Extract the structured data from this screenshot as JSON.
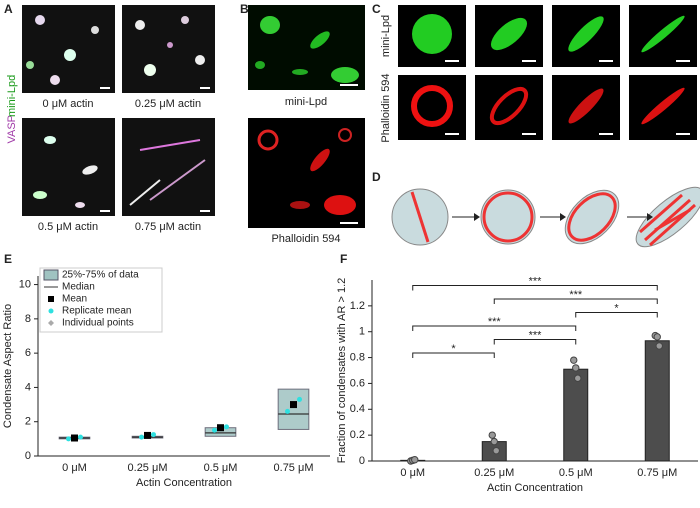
{
  "panels": {
    "A": {
      "label": "A",
      "stain1": "VASP",
      "stain2": "mini-Lpd",
      "captions": [
        "0 μM actin",
        "0.25 μM actin",
        "0.5 μM actin",
        "0.75 μM actin"
      ]
    },
    "B": {
      "label": "B",
      "captions": [
        "mini-Lpd",
        "Phalloidin 594"
      ]
    },
    "C": {
      "label": "C",
      "rows": [
        "mini-Lpd",
        "Phalloidin 594"
      ]
    },
    "D": {
      "label": "D"
    },
    "E": {
      "label": "E"
    },
    "F": {
      "label": "F"
    }
  },
  "chart_data": [
    {
      "type": "box",
      "ylabel": "Condensate Aspect Ratio",
      "xlabel": "Actin Concentration",
      "categories": [
        "0 μM",
        "0.25 μM",
        "0.5 μM",
        "0.75 μM"
      ],
      "q1": [
        1.0,
        1.05,
        1.15,
        1.55
      ],
      "median": [
        1.05,
        1.1,
        1.35,
        2.45
      ],
      "q3": [
        1.1,
        1.15,
        1.65,
        3.9
      ],
      "mean": [
        1.05,
        1.2,
        1.65,
        3.0
      ],
      "replicate_means": [
        [
          1.0,
          1.05,
          1.1
        ],
        [
          1.1,
          1.2,
          1.25
        ],
        [
          1.5,
          1.6,
          1.7
        ],
        [
          2.6,
          3.0,
          3.3
        ]
      ],
      "ylim": [
        0,
        10.5
      ],
      "yticks": [
        0,
        2,
        4,
        6,
        8,
        10
      ],
      "box_color": "#9fc3c1",
      "legend": [
        "25%-75% of data",
        "Median",
        "Mean",
        "Replicate mean",
        "Individual points"
      ]
    },
    {
      "type": "bar",
      "ylabel": "Fraction of condensates with AR > 1.2",
      "xlabel": "Actin Concentration",
      "categories": [
        "0 μM",
        "0.25 μM",
        "0.5 μM",
        "0.75 μM"
      ],
      "values": [
        0.005,
        0.15,
        0.71,
        0.93
      ],
      "points": [
        [
          0.0,
          0.005,
          0.01
        ],
        [
          0.2,
          0.15,
          0.08
        ],
        [
          0.78,
          0.72,
          0.64
        ],
        [
          0.97,
          0.96,
          0.89
        ]
      ],
      "ylim": [
        0,
        1.4
      ],
      "yticks": [
        0,
        0.2,
        0.4,
        0.6,
        0.8,
        1,
        1.2
      ],
      "color": "#4d4d4d",
      "annotations": [
        {
          "from": 0,
          "to": 1,
          "label": "*"
        },
        {
          "from": 1,
          "to": 2,
          "label": "***"
        },
        {
          "from": 0,
          "to": 2,
          "label": "***"
        },
        {
          "from": 2,
          "to": 3,
          "label": "*"
        },
        {
          "from": 1,
          "to": 3,
          "label": "***"
        },
        {
          "from": 0,
          "to": 3,
          "label": "***"
        }
      ]
    }
  ]
}
